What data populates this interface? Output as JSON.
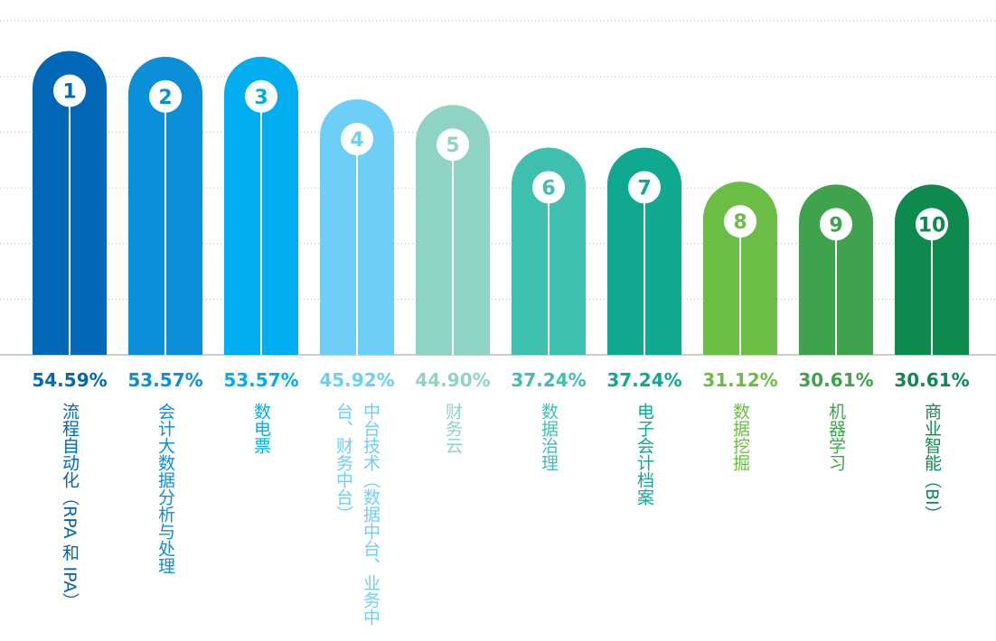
{
  "chart_data": {
    "type": "bar",
    "categories": [
      "流程自动化（RPA 和 IPA）",
      "会计大数据分析与处理",
      "数电票",
      "中台技术（数据中台、业务中台、财务中台）",
      "财务云",
      "数据治理",
      "电子会计档案",
      "数据挖掘",
      "机器学习",
      "商业智能（BI）"
    ],
    "values": [
      54.59,
      53.57,
      53.57,
      45.92,
      44.9,
      37.24,
      37.24,
      31.12,
      30.61,
      30.61
    ],
    "value_labels": [
      "54.59%",
      "53.57%",
      "53.57%",
      "45.92%",
      "44.90%",
      "37.24%",
      "37.24%",
      "31.12%",
      "30.61%",
      "30.61%"
    ],
    "ranks": [
      1,
      2,
      3,
      4,
      5,
      6,
      7,
      8,
      9,
      10
    ],
    "colors": [
      "#0068b7",
      "#0a8fd8",
      "#00aeef",
      "#6dcff6",
      "#8fd3c4",
      "#3fbfae",
      "#10a88e",
      "#6cbd45",
      "#3fa34d",
      "#0e8a4e"
    ],
    "ylim": [
      0,
      61
    ],
    "gridlines": [
      10,
      20,
      30,
      40,
      50,
      60
    ],
    "grid": true
  }
}
